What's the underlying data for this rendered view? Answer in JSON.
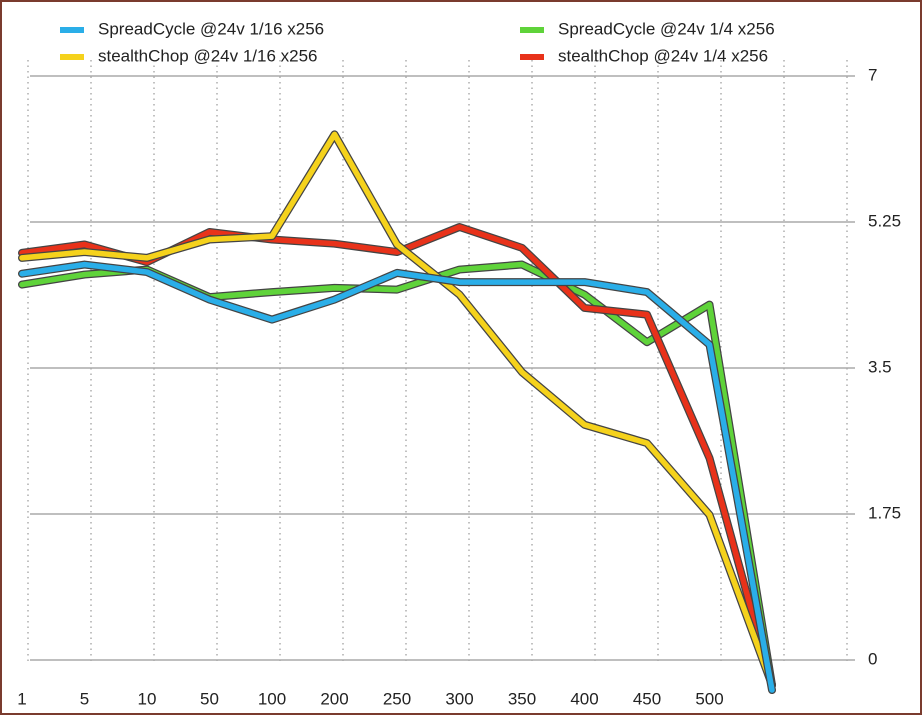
{
  "chart_data": {
    "type": "line",
    "categories": [
      "1",
      "5",
      "10",
      "50",
      "100",
      "200",
      "250",
      "300",
      "350",
      "400",
      "450",
      "500",
      null
    ],
    "series": [
      {
        "name": "SpreadCycle @24v 1/4 x256",
        "color": "#5fd33a",
        "values": [
          4.5,
          4.62,
          4.68,
          4.35,
          4.41,
          4.46,
          4.44,
          4.68,
          4.74,
          4.38,
          3.81,
          4.26,
          -0.3
        ]
      },
      {
        "name": "stealthChop @24v 1/4 x256",
        "color": "#e8321a",
        "values": [
          4.88,
          4.98,
          4.77,
          5.13,
          5.04,
          4.99,
          4.89,
          5.19,
          4.94,
          4.22,
          4.14,
          2.42,
          -0.3
        ]
      },
      {
        "name": "stealthChop @24v 1/16 x256",
        "color": "#f5d21c",
        "values": [
          4.82,
          4.89,
          4.82,
          5.04,
          5.08,
          6.3,
          4.98,
          4.38,
          3.45,
          2.82,
          2.6,
          1.74,
          -0.3
        ]
      },
      {
        "name": "SpreadCycle @24v 1/16 x256",
        "color": "#2aaee8",
        "values": [
          4.63,
          4.74,
          4.65,
          4.32,
          4.08,
          4.32,
          4.64,
          4.53,
          4.53,
          4.53,
          4.41,
          3.78,
          -0.36
        ]
      }
    ],
    "ylim": [
      0,
      7
    ],
    "yticks": [
      0,
      1.75,
      3.5,
      5.25,
      7
    ],
    "grid": true
  }
}
